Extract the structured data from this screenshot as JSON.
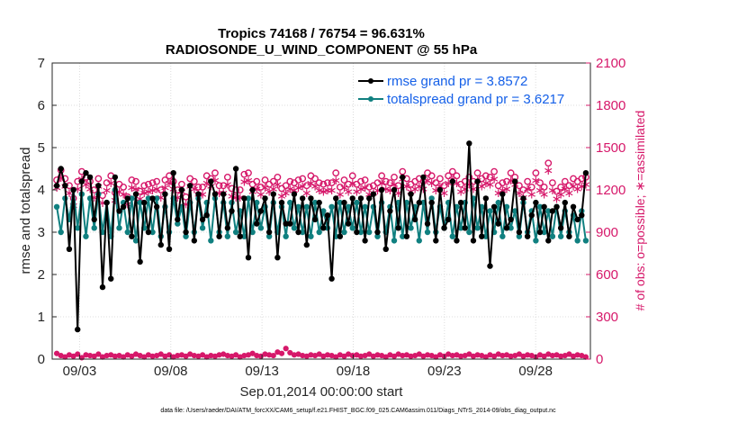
{
  "chart_data": {
    "type": "line",
    "title": "Tropics 74168 / 76754 = 96.631%",
    "subtitle": "RADIOSONDE_U_WIND_COMPONENT @ 55 hPa",
    "xlabel": "Sep.01,2014 00:00:00 start",
    "ylabel": "rmse and totalspread",
    "ylabel_right": "# of obs: o=possible; ∗=assimilated",
    "footnote": "data file: /Users/raeder/DAI/ATM_forcXX/CAM6_setup/f.e21.FHIST_BGC.f09_025.CAM6assim.011/Diags_NTrS_2014-09/obs_diag_output.nc",
    "xlim": [
      1.5,
      31.0
    ],
    "ylim": [
      0,
      7
    ],
    "ylim_right": [
      0,
      2100
    ],
    "x_ticks": [
      3,
      8,
      13,
      18,
      23,
      28
    ],
    "x_tick_labels": [
      "09/03",
      "09/08",
      "09/13",
      "09/18",
      "09/23",
      "09/28"
    ],
    "y_ticks": [
      "0",
      "1",
      "2",
      "3",
      "4",
      "5",
      "6",
      "7"
    ],
    "y_ticks_right": [
      "0",
      "300",
      "600",
      "900",
      "1200",
      "1500",
      "1800",
      "2100"
    ],
    "legend": [
      "rmse grand pr = 3.8572",
      "totalspread grand pr = 3.6217"
    ],
    "colors": {
      "rmse": "#000000",
      "spread": "#108080",
      "obs": "#d6186a",
      "legend_text": "#1560e8",
      "axis": "#262626"
    },
    "series": [
      {
        "name": "rmse",
        "values": [
          4.1,
          4.5,
          4.1,
          2.6,
          4.0,
          0.7,
          4.2,
          4.4,
          4.3,
          3.3,
          4.1,
          1.7,
          3.7,
          1.9,
          4.3,
          3.5,
          3.6,
          3.8,
          2.9,
          3.9,
          2.3,
          3.7,
          3.0,
          3.8,
          3.6,
          2.7,
          3.9,
          2.6,
          4.4,
          3.3,
          4.0,
          3.0,
          4.1,
          2.8,
          3.9,
          3.3,
          3.4,
          4.2,
          3.9,
          2.9,
          3.9,
          3.1,
          3.5,
          4.5,
          2.9,
          3.8,
          2.4,
          4.0,
          3.2,
          3.5,
          3.8,
          3.0,
          3.9,
          2.4,
          3.7,
          3.2,
          3.2,
          3.9,
          3.0,
          3.8,
          2.7,
          3.8,
          3.3,
          3.7,
          3.1,
          3.4,
          1.9,
          3.8,
          2.9,
          3.7,
          3.2,
          3.8,
          3.0,
          3.8,
          2.8,
          3.8,
          3.9,
          3.0,
          4.0,
          2.6,
          3.5,
          4.0,
          3.1,
          4.3,
          2.9,
          3.9,
          3.3,
          3.7,
          4.3,
          3.2,
          3.7,
          2.8,
          4.0,
          3.1,
          3.3,
          4.2,
          2.8,
          3.7,
          3.1,
          5.1,
          2.8,
          4.2,
          2.9,
          3.8,
          2.2,
          3.6,
          3.2,
          3.9,
          3.1,
          3.3,
          4.2,
          3.0,
          3.8,
          2.9,
          3.4,
          3.7,
          3.0,
          3.6,
          2.8,
          3.5,
          3.6,
          3.1,
          3.7,
          2.9,
          3.6,
          3.3,
          3.4,
          4.4
        ]
      },
      {
        "name": "totalspread",
        "values": [
          3.6,
          3.0,
          3.8,
          3.3,
          4.0,
          3.1,
          3.9,
          2.9,
          3.8,
          3.1,
          3.9,
          3.0,
          3.7,
          2.9,
          4.0,
          3.1,
          3.7,
          3.0,
          3.8,
          2.8,
          3.7,
          3.1,
          3.8,
          3.0,
          3.8,
          2.9,
          3.6,
          3.0,
          3.8,
          3.2,
          3.6,
          2.9,
          3.7,
          3.0,
          3.8,
          3.1,
          3.7,
          2.8,
          3.8,
          3.0,
          3.7,
          2.9,
          3.7,
          3.0,
          3.5,
          2.9,
          3.8,
          3.0,
          3.7,
          3.1,
          3.6,
          2.9,
          3.7,
          3.0,
          3.6,
          2.9,
          3.7,
          3.1,
          3.6,
          3.0,
          3.6,
          2.9,
          3.7,
          3.0,
          3.5,
          3.1,
          3.6,
          2.9,
          3.7,
          3.0,
          3.6,
          3.1,
          3.7,
          3.0,
          3.6,
          3.0,
          3.6,
          2.9,
          3.7,
          3.0,
          3.6,
          2.8,
          3.7,
          2.9,
          3.7,
          3.1,
          3.6,
          2.8,
          3.7,
          3.0,
          3.8,
          3.0,
          3.6,
          3.1,
          3.7,
          2.9,
          3.6,
          3.1,
          3.7,
          3.0,
          3.8,
          3.1,
          3.6,
          2.9,
          3.5,
          3.0,
          3.7,
          2.9,
          3.6,
          3.1,
          3.5,
          2.9,
          3.7,
          3.0,
          3.5,
          2.8,
          3.6,
          3.0,
          3.5,
          2.9,
          3.6,
          2.9,
          3.5,
          3.0,
          3.4,
          2.8,
          3.5,
          2.8
        ]
      },
      {
        "name": "obs_possible",
        "axis": "right",
        "values": [
          1270,
          1340,
          1280,
          1230,
          1140,
          1260,
          1330,
          1290,
          1260,
          1200,
          1280,
          1160,
          1250,
          1300,
          1180,
          1240,
          1220,
          1150,
          1270,
          1260,
          1190,
          1230,
          1240,
          1250,
          1260,
          1200,
          1270,
          1300,
          1260,
          1200,
          1240,
          1150,
          1280,
          1260,
          1220,
          1220,
          1300,
          1280,
          1320,
          1230,
          1230,
          1290,
          1210,
          1200,
          1200,
          1310,
          1320,
          1240,
          1260,
          1220,
          1270,
          1240,
          1260,
          1290,
          1210,
          1230,
          1260,
          1250,
          1270,
          1280,
          1230,
          1300,
          1280,
          1250,
          1240,
          1250,
          1250,
          1320,
          1220,
          1270,
          1240,
          1300,
          1240,
          1260,
          1270,
          1220,
          1230,
          1250,
          1300,
          1260,
          1250,
          1290,
          1230,
          1330,
          1280,
          1240,
          1260,
          1280,
          1260,
          1320,
          1300,
          1250,
          1280,
          1230,
          1300,
          1330,
          1300,
          1240,
          1260,
          1290,
          1260,
          1320,
          1280,
          1300,
          1290,
          1330,
          1230,
          1250,
          1260,
          1320,
          1290,
          1230,
          1200,
          1260,
          1220,
          1320,
          1250,
          1220,
          1390,
          1250,
          1190,
          1220,
          1260,
          1230,
          1280,
          1260,
          1280,
          1290
        ]
      },
      {
        "name": "obs_assimilated",
        "axis": "right",
        "values": [
          1220,
          1290,
          1230,
          1180,
          1090,
          1210,
          1280,
          1240,
          1210,
          1150,
          1230,
          1110,
          1200,
          1250,
          1130,
          1190,
          1170,
          1100,
          1220,
          1210,
          1140,
          1180,
          1190,
          1200,
          1210,
          1150,
          1220,
          1250,
          1210,
          1150,
          1190,
          1100,
          1230,
          1210,
          1170,
          1170,
          1250,
          1230,
          1270,
          1180,
          1180,
          1240,
          1160,
          1150,
          1150,
          1260,
          1270,
          1190,
          1210,
          1170,
          1220,
          1190,
          1210,
          1240,
          1160,
          1180,
          1210,
          1200,
          1220,
          1230,
          1180,
          1250,
          1230,
          1200,
          1190,
          1200,
          1200,
          1270,
          1170,
          1220,
          1190,
          1250,
          1190,
          1210,
          1220,
          1170,
          1180,
          1200,
          1250,
          1210,
          1200,
          1240,
          1180,
          1280,
          1230,
          1190,
          1210,
          1230,
          1210,
          1270,
          1250,
          1200,
          1230,
          1180,
          1250,
          1280,
          1250,
          1190,
          1210,
          1240,
          1210,
          1270,
          1230,
          1250,
          1240,
          1280,
          1180,
          1200,
          1210,
          1270,
          1240,
          1180,
          1150,
          1210,
          1170,
          1270,
          1200,
          1170,
          1340,
          1200,
          1140,
          1170,
          1210,
          1180,
          1230,
          1210,
          1230,
          1240
        ]
      },
      {
        "name": "obs_rejected_near_zero",
        "axis": "right",
        "values": [
          40,
          25,
          15,
          30,
          20,
          35,
          10,
          30,
          25,
          20,
          35,
          15,
          25,
          30,
          20,
          25,
          15,
          30,
          20,
          35,
          25,
          15,
          30,
          20,
          25,
          35,
          20,
          30,
          15,
          25,
          30,
          20,
          35,
          25,
          20,
          30,
          15,
          25,
          20,
          30,
          35,
          25,
          20,
          30,
          15,
          25,
          30,
          40,
          25,
          20,
          35,
          30,
          25,
          50,
          40,
          75,
          45,
          30,
          35,
          25,
          20,
          30,
          25,
          35,
          20,
          30,
          25,
          15,
          30,
          20,
          35,
          25,
          30,
          20,
          25,
          35,
          20,
          30,
          25,
          15,
          30,
          20,
          35,
          25,
          30,
          20,
          25,
          35,
          20,
          30,
          25,
          15,
          30,
          20,
          35,
          25,
          30,
          20,
          25,
          35,
          20,
          30,
          25,
          15,
          30,
          20,
          35,
          25,
          30,
          20,
          25,
          35,
          20,
          30,
          25,
          15,
          30,
          20,
          35,
          25,
          30,
          20,
          25,
          35,
          20,
          30,
          25,
          15
        ]
      }
    ]
  }
}
